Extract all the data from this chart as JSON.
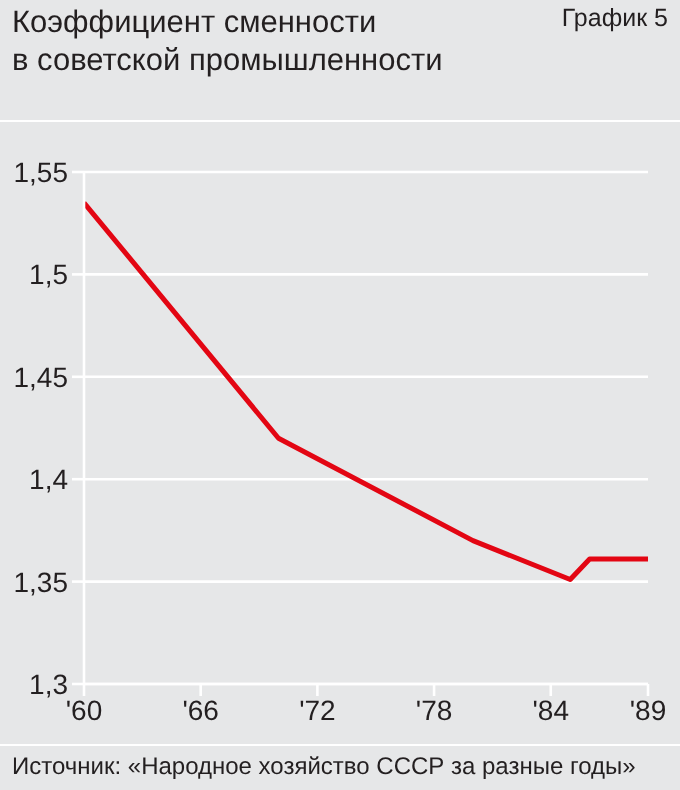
{
  "chart_data": {
    "type": "line",
    "title": "Коэффициент сменности\nв советской промышленности",
    "annotations": [
      "График 5",
      "Источник: «Народное хозяйство СССР за разные годы»"
    ],
    "x": [
      1960,
      1970,
      1980,
      1985,
      1986,
      1989
    ],
    "series": [
      {
        "color": "#e30613",
        "values": [
          1.535,
          1.42,
          1.37,
          1.351,
          1.361,
          1.361
        ]
      }
    ],
    "xlim": [
      1960,
      1989
    ],
    "xticks": [
      {
        "value": 1960,
        "label": "'60"
      },
      {
        "value": 1966,
        "label": "'66"
      },
      {
        "value": 1972,
        "label": "'72"
      },
      {
        "value": 1978,
        "label": "'78"
      },
      {
        "value": 1984,
        "label": "'84"
      },
      {
        "value": 1989,
        "label": "'89"
      }
    ],
    "ylim": [
      1.3,
      1.55
    ],
    "yticks": [
      {
        "value": 1.3,
        "label": "1,3"
      },
      {
        "value": 1.35,
        "label": "1,35"
      },
      {
        "value": 1.4,
        "label": "1,4"
      },
      {
        "value": 1.45,
        "label": "1,45"
      },
      {
        "value": 1.5,
        "label": "1,5"
      },
      {
        "value": 1.55,
        "label": "1,55"
      }
    ],
    "grid": "y",
    "legend": false,
    "marker": "none",
    "line_style": "solid"
  }
}
